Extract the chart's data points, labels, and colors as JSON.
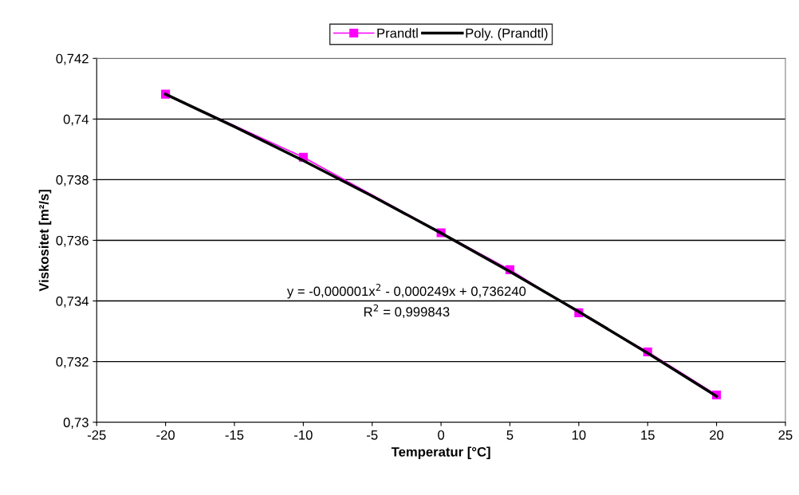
{
  "chart_data": {
    "type": "line",
    "xlabel": "Temperatur [°C]",
    "ylabel": "Viskositet [m²/s]",
    "series": [
      {
        "name": "Prandtl",
        "color": "#ff00ff",
        "marker": "square",
        "x": [
          -20,
          -10,
          0,
          5,
          10,
          15,
          20
        ],
        "values": [
          0.74082,
          0.73874,
          0.73625,
          0.73503,
          0.73361,
          0.73232,
          0.7309
        ]
      },
      {
        "name": "Poly. (Prandtl)",
        "color": "#000000",
        "marker": "none",
        "x": [
          -20,
          -15,
          -10,
          -5,
          0,
          5,
          10,
          15,
          20
        ],
        "values": [
          0.74082,
          0.73975,
          0.73863,
          0.73746,
          0.73624,
          0.73497,
          0.73365,
          0.73228,
          0.73086
        ]
      }
    ],
    "annotations": [
      "y = -0,000001x$^{2}$ - 0,000249x + 0,736240",
      "R$^{2}$ = 0,999843"
    ],
    "xlim": [
      -25,
      25
    ],
    "xticks": [
      -25,
      -20,
      -15,
      -10,
      -5,
      0,
      5,
      10,
      15,
      20,
      25
    ],
    "ylim": [
      0.73,
      0.742
    ],
    "yticks": [
      {
        "value": 0.73,
        "label": "0,73"
      },
      {
        "value": 0.732,
        "label": "0,732"
      },
      {
        "value": 0.734,
        "label": "0,734"
      },
      {
        "value": 0.736,
        "label": "0,736"
      },
      {
        "value": 0.738,
        "label": "0,738"
      },
      {
        "value": 0.74,
        "label": "0,74"
      },
      {
        "value": 0.742,
        "label": "0,742"
      }
    ],
    "grid": "y",
    "legend": "top",
    "line_style": "solid"
  }
}
